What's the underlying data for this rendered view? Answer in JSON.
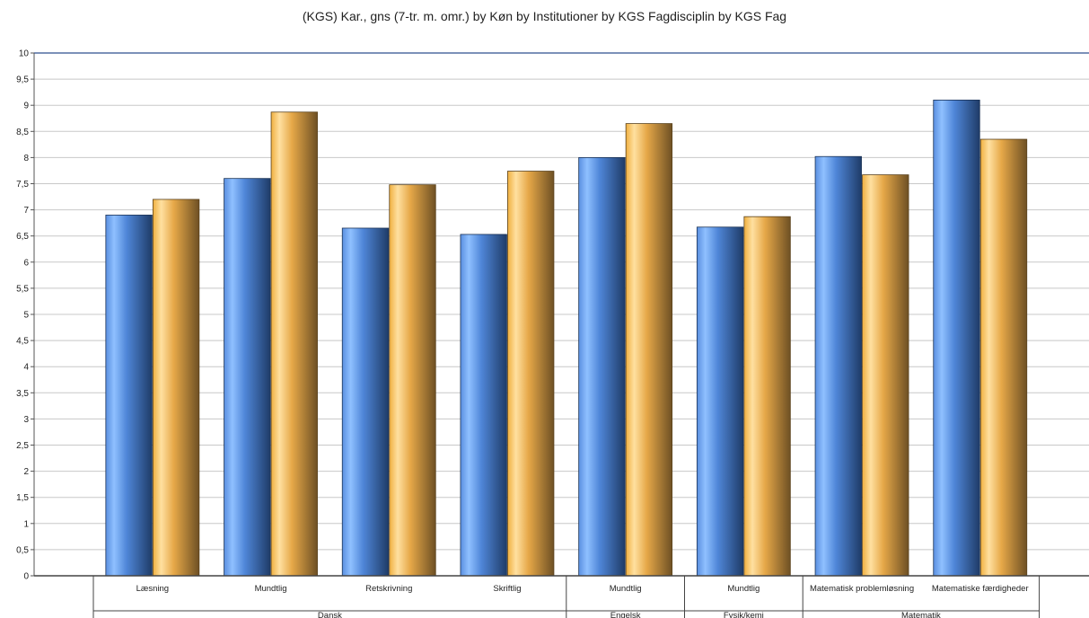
{
  "chart_data": {
    "type": "bar",
    "title": "(KGS) Kar., gns (7-tr. m. omr.) by Køn by Institutioner by KGS Fagdisciplin by KGS Fag",
    "xlabel": "",
    "ylabel": "",
    "ylim": [
      0,
      10
    ],
    "y_ticks": [
      "0",
      "0,5",
      "1",
      "1,5",
      "2",
      "2,5",
      "3",
      "3,5",
      "4",
      "4,5",
      "5",
      "5,5",
      "6",
      "6,5",
      "7",
      "7,5",
      "8",
      "8,5",
      "9",
      "9,5",
      "10"
    ],
    "grid": true,
    "legend": "none",
    "categories": [
      "Læsning",
      "Mundtlig",
      "Retskrivning",
      "Skriftlig",
      "Mundtlig",
      "Mundtlig",
      "Matematisk problemløsning",
      "Matematiske færdigheder"
    ],
    "groups": [
      {
        "label": "Dansk",
        "span": 4
      },
      {
        "label": "Engelsk",
        "span": 1
      },
      {
        "label": "Fysik/kemi",
        "span": 1
      },
      {
        "label": "Matematik",
        "span": 2
      }
    ],
    "series": [
      {
        "values": [
          6.9,
          7.6,
          6.65,
          6.53,
          8.0,
          6.67,
          8.02,
          9.1
        ],
        "color": "#4f86d8"
      },
      {
        "values": [
          7.2,
          8.87,
          7.48,
          7.74,
          8.65,
          6.87,
          7.67,
          8.35
        ],
        "color": "#f4b54a"
      }
    ]
  }
}
